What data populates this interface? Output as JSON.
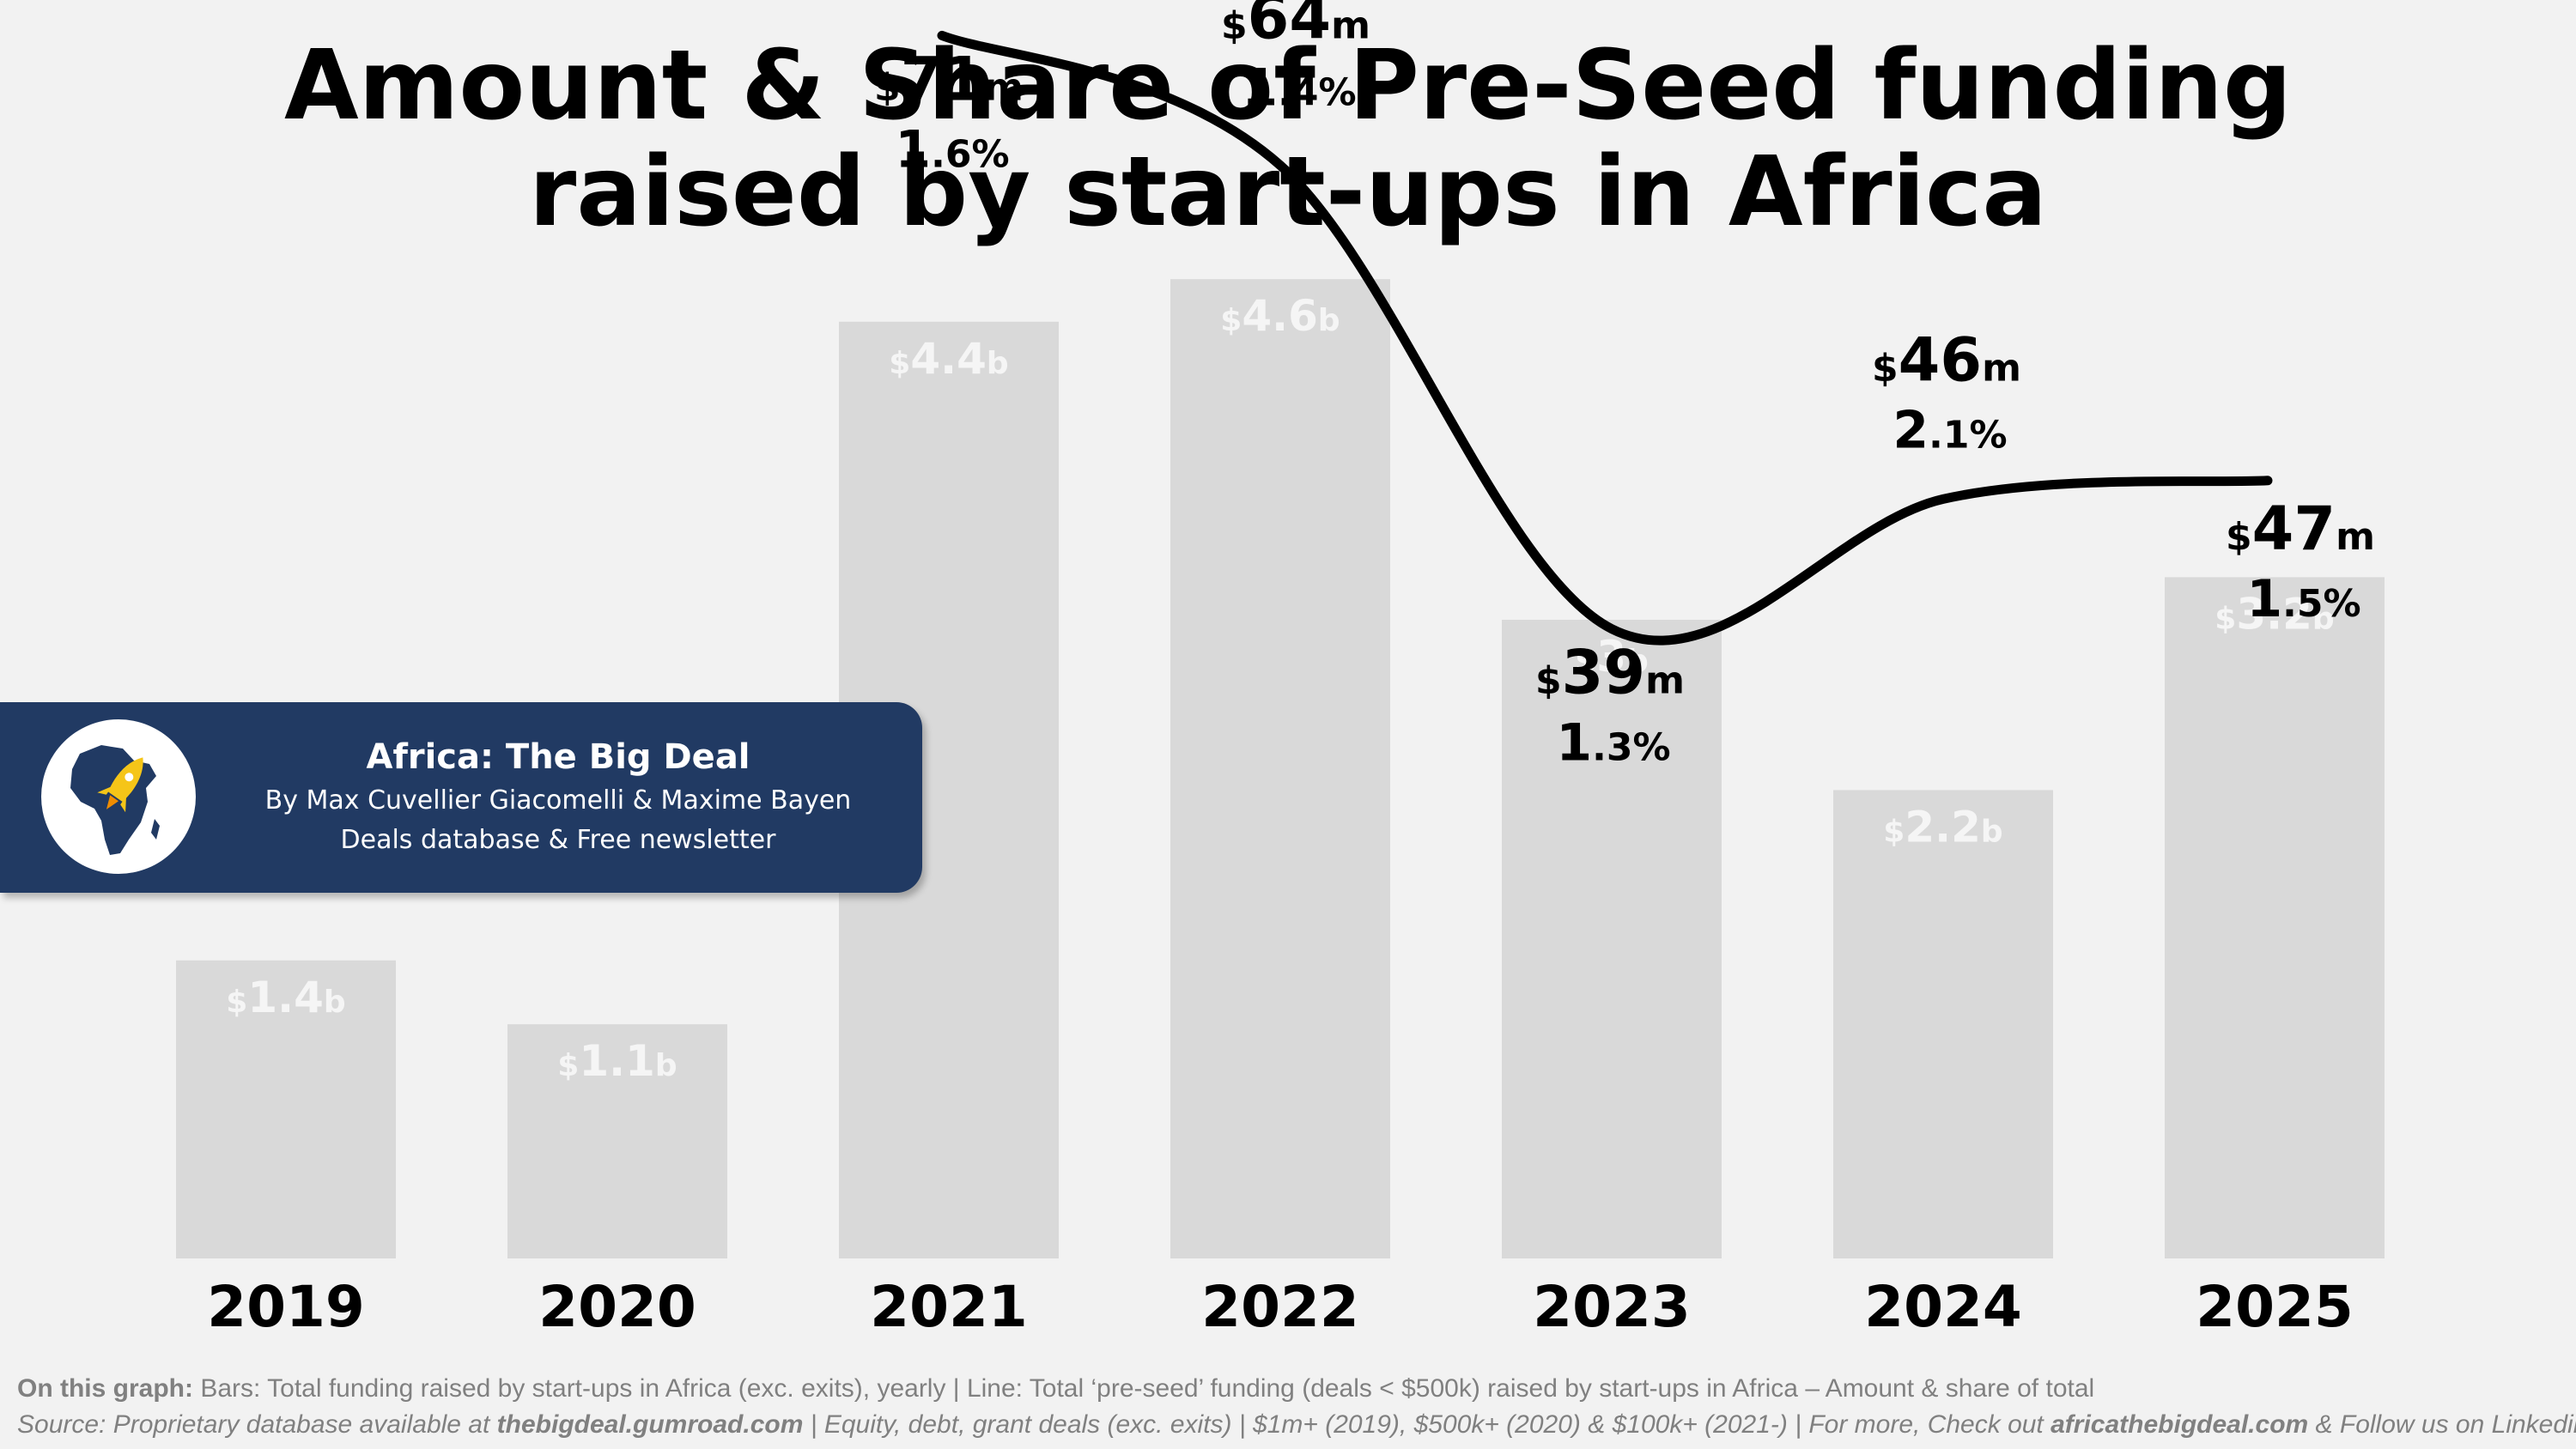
{
  "chart_data": {
    "type": "bar",
    "title_lines": [
      "Amount & Share of Pre-Seed funding",
      "raised by start-ups in Africa"
    ],
    "categories": [
      "2019",
      "2020",
      "2021",
      "2022",
      "2023",
      "2024",
      "2025"
    ],
    "ylim": [
      0,
      5
    ],
    "series": [
      {
        "name": "Total funding raised by start-ups in Africa",
        "type": "bar",
        "unit": "b",
        "values": [
          1.4,
          1.1,
          4.4,
          4.6,
          3,
          2.2,
          3.2
        ],
        "labels": [
          {
            "prefix": "$",
            "num": "1.4",
            "suffix": "b"
          },
          {
            "prefix": "$",
            "num": "1.1",
            "suffix": "b"
          },
          {
            "prefix": "$",
            "num": "4.4",
            "suffix": "b"
          },
          {
            "prefix": "$",
            "num": "4.6",
            "suffix": "b"
          },
          {
            "prefix": "$",
            "num": "3",
            "suffix": "b"
          },
          {
            "prefix": "$",
            "num": "2.2",
            "suffix": "b"
          },
          {
            "prefix": "$",
            "num": "3.2",
            "suffix": "b"
          }
        ]
      },
      {
        "name": "Total pre-seed funding",
        "type": "line",
        "unit": "m",
        "start_index": 2,
        "amounts": [
          71,
          64,
          39,
          46,
          47
        ],
        "shares_pct": [
          1.6,
          1.4,
          1.3,
          2.1,
          1.5
        ],
        "amount_labels": [
          {
            "prefix": "$",
            "num": "71",
            "suffix": "m"
          },
          {
            "prefix": "$",
            "num": "64",
            "suffix": "m"
          },
          {
            "prefix": "$",
            "num": "39",
            "suffix": "m"
          },
          {
            "prefix": "$",
            "num": "46",
            "suffix": "m"
          },
          {
            "prefix": "$",
            "num": "47",
            "suffix": "m"
          }
        ],
        "share_labels": [
          {
            "int": "1",
            "dec": ".6%"
          },
          {
            "int": "1",
            "dec": ".4%"
          },
          {
            "int": "1",
            "dec": ".3%"
          },
          {
            "int": "2",
            "dec": ".1%"
          },
          {
            "int": "1",
            "dec": ".5%"
          }
        ]
      }
    ],
    "bar_color": "#d9d9d9",
    "bar_label_color": "#f5f5f5",
    "line_color": "#000000",
    "legend": "none",
    "grid": false
  },
  "brand": {
    "name": "Africa: The Big Deal",
    "authors": "By Max Cuvellier Giacomelli & Maxime Bayen",
    "tagline": "Deals database & Free newsletter",
    "box_color": "#213a63",
    "accent_color": "#f5c518"
  },
  "footnote": {
    "graph_label": "On this graph:",
    "graph_text": " Bars: Total funding raised by start-ups in Africa (exc. exits), yearly | Line: Total ‘pre-seed’ funding (deals < $500k) raised by start-ups in Africa – Amount & share of total",
    "source_prefix": "Source: Proprietary database available at ",
    "source_link": "thebigdeal.gumroad.com",
    "source_middle": " | Equity, debt, grant deals (exc. exits) | $1m+ (2019), $500k+ (2020) & $100k+ (2021-) | For more, Check out ",
    "source_site": "africathebigdeal.com",
    "source_suffix": " & Follow us on Linkedin"
  }
}
